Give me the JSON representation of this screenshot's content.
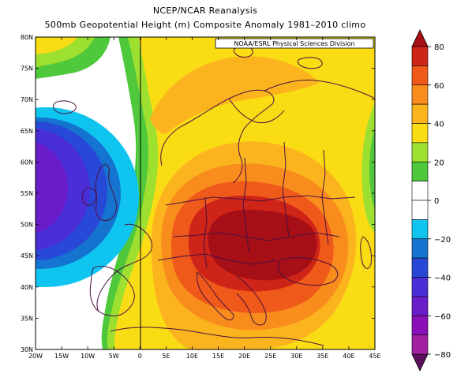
{
  "title": "NCEP/NCAR Reanalysis",
  "subtitle": "500mb Geopotential Height (m) Composite Anomaly 1981–2010 climo",
  "credit": "NOAA/ESRL Physical Sciences Division",
  "map": {
    "lon_range": [
      -20,
      45
    ],
    "lat_range": [
      30,
      80
    ],
    "lon_ticks": [
      "20W",
      "15W",
      "10W",
      "5W",
      "0",
      "5E",
      "10E",
      "15E",
      "20E",
      "25E",
      "30E",
      "35E",
      "40E",
      "45E"
    ],
    "lat_ticks": [
      "30N",
      "35N",
      "40N",
      "45N",
      "50N",
      "55N",
      "60N",
      "65N",
      "70N",
      "75N",
      "80N"
    ],
    "features": [
      {
        "name": "positive-anomaly-center",
        "lon": 22,
        "lat": 49,
        "value": 80
      },
      {
        "name": "negative-anomaly-center",
        "lon": -19,
        "lat": 57,
        "value": -50
      }
    ]
  },
  "colorbar": {
    "levels": [
      "80",
      "60",
      "40",
      "20",
      "0",
      "−20",
      "−40",
      "−60",
      "−80"
    ],
    "colors": {
      "gt70": "#a50f15",
      "60_70": "#cf2418",
      "50_60": "#ef5a1a",
      "40_50": "#f88c1d",
      "30_40": "#fcb41e",
      "20_30": "#fadc14",
      "10_20": "#9ee030",
      "0_10": "#4fc83c",
      "neutral": "#ffffff",
      "m10_m20": "#10c4f0",
      "m20_m30": "#1474d0",
      "m30_m40": "#2848d8",
      "m40_m50": "#4a2ed8",
      "m50_m60": "#6a1cc8",
      "m60_m70": "#8a10b8",
      "m70_m80": "#a020a0",
      "lt80": "#5a0f5a"
    }
  }
}
